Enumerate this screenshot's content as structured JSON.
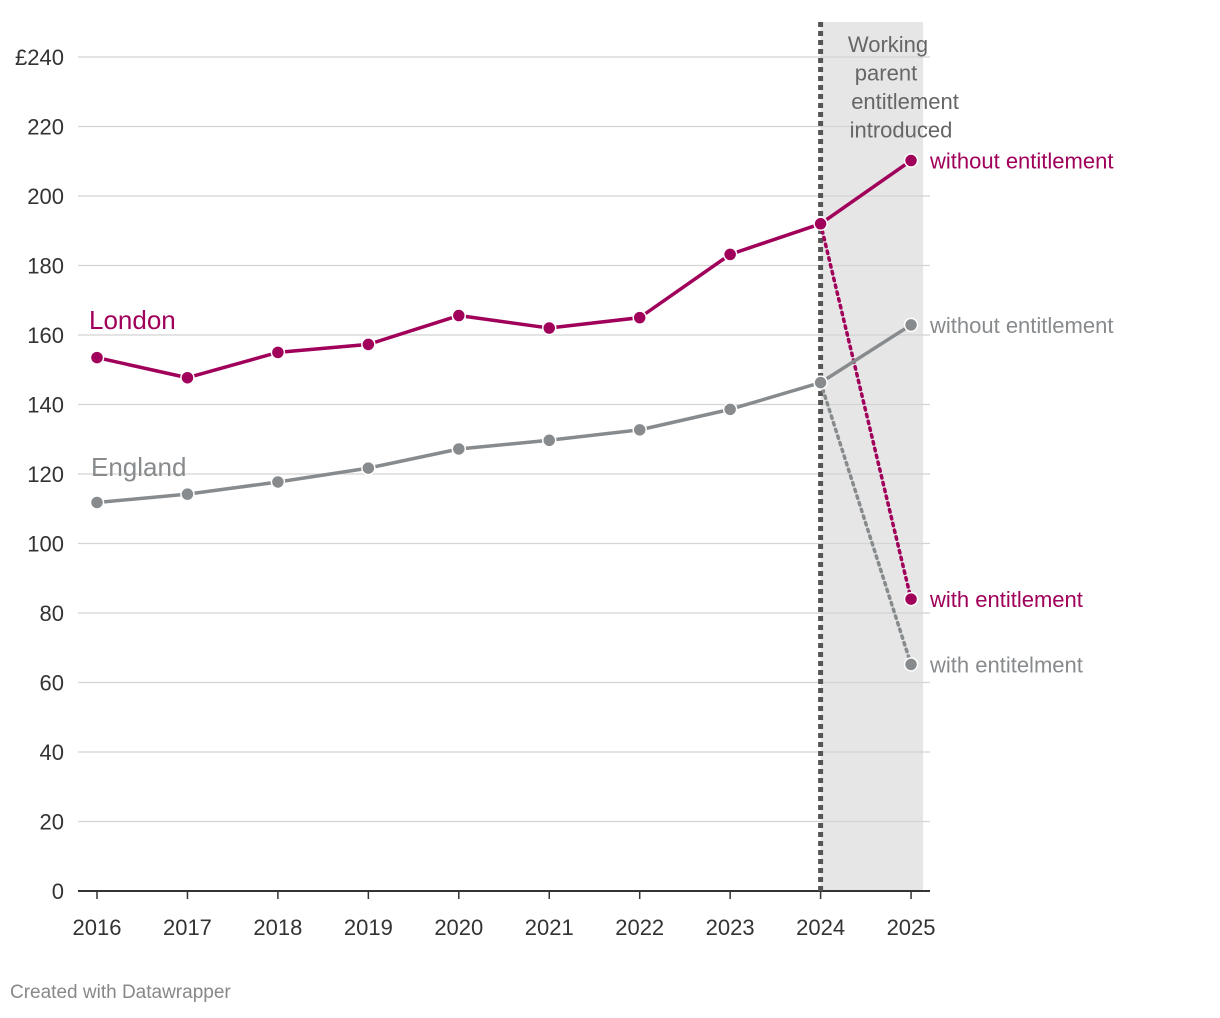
{
  "chart_data": {
    "type": "line",
    "x": [
      "2016",
      "2017",
      "2018",
      "2019",
      "2020",
      "2021",
      "2022",
      "2023",
      "2024",
      "2025"
    ],
    "ylim": [
      0,
      240
    ],
    "yticks": [
      0,
      20,
      40,
      60,
      80,
      100,
      120,
      140,
      160,
      180,
      200,
      220,
      240
    ],
    "ytick_labels": [
      "0",
      "20",
      "40",
      "60",
      "80",
      "100",
      "120",
      "140",
      "160",
      "180",
      "200",
      "220",
      "£240"
    ],
    "series": [
      {
        "name": "London",
        "color": "#a0005a",
        "values": [
          153.5,
          147.7,
          155.0,
          157.3,
          165.6,
          162.0,
          165.0,
          183.2,
          192.0,
          210.2
        ],
        "end_label": "without entitlement",
        "entitlement_value": 84.0,
        "entitlement_label": "with entitlement"
      },
      {
        "name": "England",
        "color": "#888b8d",
        "values": [
          111.8,
          114.2,
          117.7,
          121.7,
          127.2,
          129.7,
          132.7,
          138.6,
          146.3,
          162.9
        ],
        "end_label": "without entitlement",
        "entitlement_value": 65.2,
        "entitlement_label": "with entitelment"
      }
    ],
    "shaded_range": [
      "2024",
      "2025"
    ],
    "annotation": {
      "at": "2024",
      "lines": [
        "Working",
        "parent",
        "entitlement",
        "introduced"
      ]
    },
    "grid": true
  },
  "footer": {
    "credit": "Created with Datawrapper"
  }
}
